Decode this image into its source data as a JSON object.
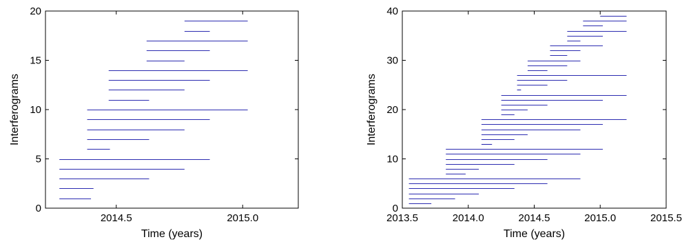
{
  "chart_data": [
    {
      "type": "interval",
      "title": "",
      "xlabel": "Time (years)",
      "ylabel": "Interferograms",
      "xlim": [
        2014.22,
        2015.22
      ],
      "ylim": [
        0,
        20
      ],
      "xticks": [
        2014.5,
        2015.0
      ],
      "xtick_labels": [
        "2014.5",
        "2015.0"
      ],
      "yticks": [
        0,
        5,
        10,
        15,
        20
      ],
      "ytick_labels": [
        "0",
        "5",
        "10",
        "15",
        "20"
      ],
      "grid": false,
      "line_color": "#2a2ab0",
      "intervals": [
        {
          "y": 1,
          "x0": 2014.275,
          "x1": 2014.4
        },
        {
          "y": 2,
          "x0": 2014.275,
          "x1": 2014.41
        },
        {
          "y": 3,
          "x0": 2014.275,
          "x1": 2014.63
        },
        {
          "y": 4,
          "x0": 2014.275,
          "x1": 2014.77
        },
        {
          "y": 5,
          "x0": 2014.275,
          "x1": 2014.87
        },
        {
          "y": 6,
          "x0": 2014.385,
          "x1": 2014.475
        },
        {
          "y": 7,
          "x0": 2014.385,
          "x1": 2014.63
        },
        {
          "y": 8,
          "x0": 2014.385,
          "x1": 2014.77
        },
        {
          "y": 9,
          "x0": 2014.385,
          "x1": 2014.87
        },
        {
          "y": 10,
          "x0": 2014.385,
          "x1": 2015.02
        },
        {
          "y": 11,
          "x0": 2014.47,
          "x1": 2014.63
        },
        {
          "y": 12,
          "x0": 2014.47,
          "x1": 2014.77
        },
        {
          "y": 13,
          "x0": 2014.47,
          "x1": 2014.87
        },
        {
          "y": 14,
          "x0": 2014.47,
          "x1": 2015.02
        },
        {
          "y": 15,
          "x0": 2014.62,
          "x1": 2014.77
        },
        {
          "y": 16,
          "x0": 2014.62,
          "x1": 2014.87
        },
        {
          "y": 17,
          "x0": 2014.62,
          "x1": 2015.02
        },
        {
          "y": 18,
          "x0": 2014.77,
          "x1": 2014.87
        },
        {
          "y": 19,
          "x0": 2014.77,
          "x1": 2015.02
        }
      ]
    },
    {
      "type": "interval",
      "title": "",
      "xlabel": "Time (years)",
      "ylabel": "Interferograms",
      "xlim": [
        2013.5,
        2015.5
      ],
      "ylim": [
        0,
        40
      ],
      "xticks": [
        2013.5,
        2014.0,
        2014.5,
        2015.0,
        2015.5
      ],
      "xtick_labels": [
        "2013.5",
        "2014.0",
        "2014.5",
        "2015.0",
        "2015.5"
      ],
      "yticks": [
        0,
        10,
        20,
        30,
        40
      ],
      "ytick_labels": [
        "0",
        "10",
        "20",
        "30",
        "40"
      ],
      "grid": false,
      "line_color": "#2a2ab0",
      "intervals": [
        {
          "y": 1,
          "x0": 2013.55,
          "x1": 2013.72
        },
        {
          "y": 2,
          "x0": 2013.55,
          "x1": 2013.9
        },
        {
          "y": 3,
          "x0": 2013.55,
          "x1": 2014.08
        },
        {
          "y": 4,
          "x0": 2013.55,
          "x1": 2014.35
        },
        {
          "y": 5,
          "x0": 2013.55,
          "x1": 2014.6
        },
        {
          "y": 6,
          "x0": 2013.55,
          "x1": 2014.85
        },
        {
          "y": 7,
          "x0": 2013.83,
          "x1": 2013.98
        },
        {
          "y": 8,
          "x0": 2013.83,
          "x1": 2014.08
        },
        {
          "y": 9,
          "x0": 2013.83,
          "x1": 2014.35
        },
        {
          "y": 10,
          "x0": 2013.83,
          "x1": 2014.6
        },
        {
          "y": 11,
          "x0": 2013.83,
          "x1": 2014.85
        },
        {
          "y": 12,
          "x0": 2013.83,
          "x1": 2015.02
        },
        {
          "y": 13,
          "x0": 2014.1,
          "x1": 2014.18
        },
        {
          "y": 14,
          "x0": 2014.1,
          "x1": 2014.35
        },
        {
          "y": 15,
          "x0": 2014.1,
          "x1": 2014.45
        },
        {
          "y": 16,
          "x0": 2014.1,
          "x1": 2014.85
        },
        {
          "y": 17,
          "x0": 2014.1,
          "x1": 2015.02
        },
        {
          "y": 18,
          "x0": 2014.1,
          "x1": 2015.2
        },
        {
          "y": 19,
          "x0": 2014.25,
          "x1": 2014.35
        },
        {
          "y": 20,
          "x0": 2014.25,
          "x1": 2014.45
        },
        {
          "y": 21,
          "x0": 2014.25,
          "x1": 2014.6
        },
        {
          "y": 22,
          "x0": 2014.25,
          "x1": 2015.02
        },
        {
          "y": 23,
          "x0": 2014.25,
          "x1": 2015.2
        },
        {
          "y": 24,
          "x0": 2014.37,
          "x1": 2014.4
        },
        {
          "y": 25,
          "x0": 2014.37,
          "x1": 2014.6
        },
        {
          "y": 26,
          "x0": 2014.37,
          "x1": 2014.75
        },
        {
          "y": 27,
          "x0": 2014.37,
          "x1": 2015.2
        },
        {
          "y": 28,
          "x0": 2014.45,
          "x1": 2014.6
        },
        {
          "y": 29,
          "x0": 2014.45,
          "x1": 2014.75
        },
        {
          "y": 30,
          "x0": 2014.45,
          "x1": 2014.85
        },
        {
          "y": 31,
          "x0": 2014.62,
          "x1": 2014.75
        },
        {
          "y": 32,
          "x0": 2014.62,
          "x1": 2014.85
        },
        {
          "y": 33,
          "x0": 2014.62,
          "x1": 2015.02
        },
        {
          "y": 34,
          "x0": 2014.75,
          "x1": 2014.85
        },
        {
          "y": 35,
          "x0": 2014.75,
          "x1": 2015.02
        },
        {
          "y": 36,
          "x0": 2014.75,
          "x1": 2015.2
        },
        {
          "y": 37,
          "x0": 2014.87,
          "x1": 2015.02
        },
        {
          "y": 38,
          "x0": 2014.87,
          "x1": 2015.2
        },
        {
          "y": 39,
          "x0": 2015.0,
          "x1": 2015.2
        }
      ]
    }
  ]
}
